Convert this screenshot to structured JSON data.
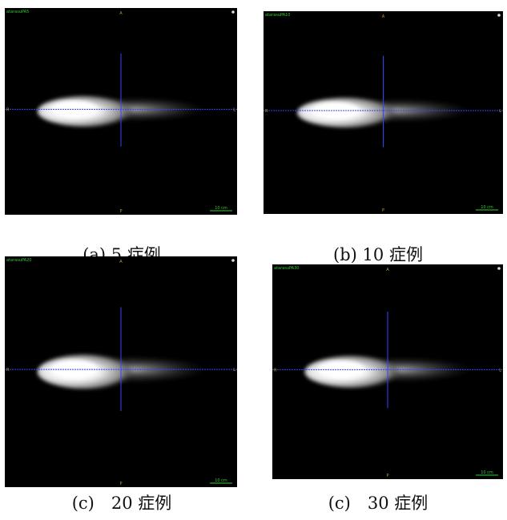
{
  "panels": [
    {
      "id_label": "atarasuPA5",
      "top": "A",
      "bottom": "P",
      "left": "R",
      "right": "L",
      "scale": "10 cm",
      "caption": "(a) 5 症例"
    },
    {
      "id_label": "atarasuPA10",
      "top": "A",
      "bottom": "P",
      "left": "R",
      "right": "L",
      "scale": "10 cm",
      "caption": "(b) 10 症例"
    },
    {
      "id_label": "atarasuPA20",
      "top": "A",
      "bottom": "P",
      "left": "R",
      "right": "L",
      "scale": "10 cm",
      "caption": "(c)　20 症例"
    },
    {
      "id_label": "atarasuPA30",
      "top": "A",
      "bottom": "P",
      "left": "R",
      "right": "L",
      "scale": "10 cm",
      "caption": "(c)　30 症例"
    }
  ]
}
